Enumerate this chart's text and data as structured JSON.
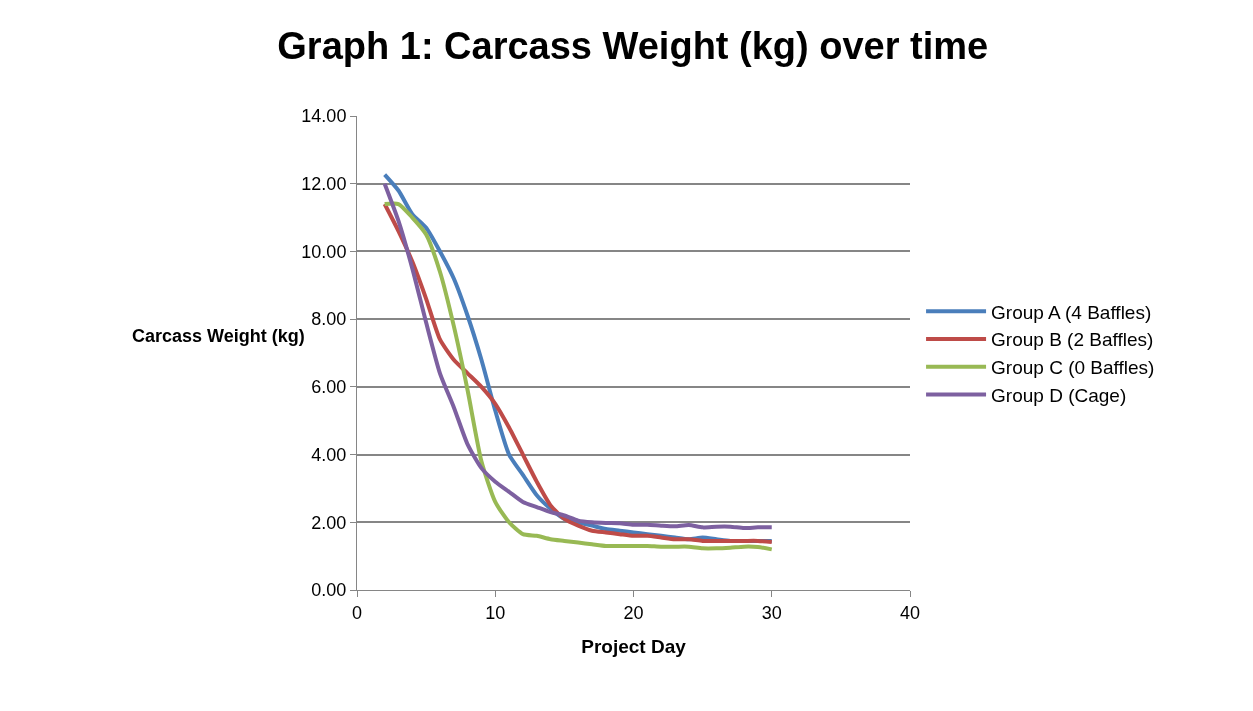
{
  "chart_data": {
    "type": "line",
    "title": "Graph 1: Carcass Weight (kg) over time",
    "xlabel": "Project Day",
    "ylabel": "Carcass Weight (kg)",
    "x": [
      2,
      3,
      4,
      5,
      6,
      7,
      8,
      9,
      10,
      11,
      12,
      13,
      14,
      15,
      16,
      17,
      18,
      19,
      20,
      21,
      22,
      23,
      24,
      25,
      26,
      27,
      28,
      29,
      30
    ],
    "series": [
      {
        "name": "Group A (4 Baffles)",
        "color": "#4a7ebb",
        "values": [
          12.27,
          11.8,
          11.1,
          10.7,
          10.0,
          9.2,
          8.1,
          6.8,
          5.3,
          4.0,
          3.4,
          2.8,
          2.4,
          2.1,
          2.0,
          1.9,
          1.8,
          1.75,
          1.7,
          1.65,
          1.6,
          1.55,
          1.5,
          1.55,
          1.5,
          1.45,
          1.45,
          1.45,
          1.45
        ]
      },
      {
        "name": "Group B (2 Baffles)",
        "color": "#be4b48",
        "values": [
          11.4,
          10.6,
          9.7,
          8.6,
          7.4,
          6.8,
          6.4,
          6.0,
          5.5,
          4.8,
          4.0,
          3.2,
          2.5,
          2.1,
          1.9,
          1.75,
          1.7,
          1.65,
          1.6,
          1.6,
          1.55,
          1.5,
          1.5,
          1.45,
          1.45,
          1.45,
          1.45,
          1.45,
          1.42
        ]
      },
      {
        "name": "Group C (0 Baffles)",
        "color": "#98b954",
        "values": [
          11.4,
          11.4,
          11.0,
          10.5,
          9.4,
          7.8,
          5.9,
          3.8,
          2.6,
          2.0,
          1.65,
          1.6,
          1.5,
          1.45,
          1.4,
          1.35,
          1.3,
          1.3,
          1.3,
          1.3,
          1.28,
          1.28,
          1.28,
          1.23,
          1.23,
          1.25,
          1.28,
          1.27,
          1.2
        ]
      },
      {
        "name": "Group D (Cage)",
        "color": "#7d60a0",
        "values": [
          12.0,
          10.9,
          9.5,
          7.9,
          6.4,
          5.4,
          4.3,
          3.6,
          3.2,
          2.9,
          2.6,
          2.45,
          2.3,
          2.2,
          2.05,
          2.0,
          1.98,
          1.97,
          1.93,
          1.93,
          1.9,
          1.88,
          1.92,
          1.85,
          1.87,
          1.87,
          1.83,
          1.85,
          1.85
        ]
      }
    ],
    "xlim": [
      0,
      40
    ],
    "xticks": [
      0,
      10,
      20,
      30,
      40
    ],
    "ylim": [
      0,
      14
    ],
    "yticks": [
      {
        "value": 0,
        "label": "0.00"
      },
      {
        "value": 2,
        "label": "2.00"
      },
      {
        "value": 4,
        "label": "4.00"
      },
      {
        "value": 6,
        "label": "6.00"
      },
      {
        "value": 8,
        "label": "8.00"
      },
      {
        "value": 10,
        "label": "10.00"
      },
      {
        "value": 12,
        "label": "12.00"
      },
      {
        "value": 14,
        "label": "14.00"
      }
    ],
    "grid": "y",
    "legend": "right",
    "marker": "none",
    "line_style": "solid"
  }
}
